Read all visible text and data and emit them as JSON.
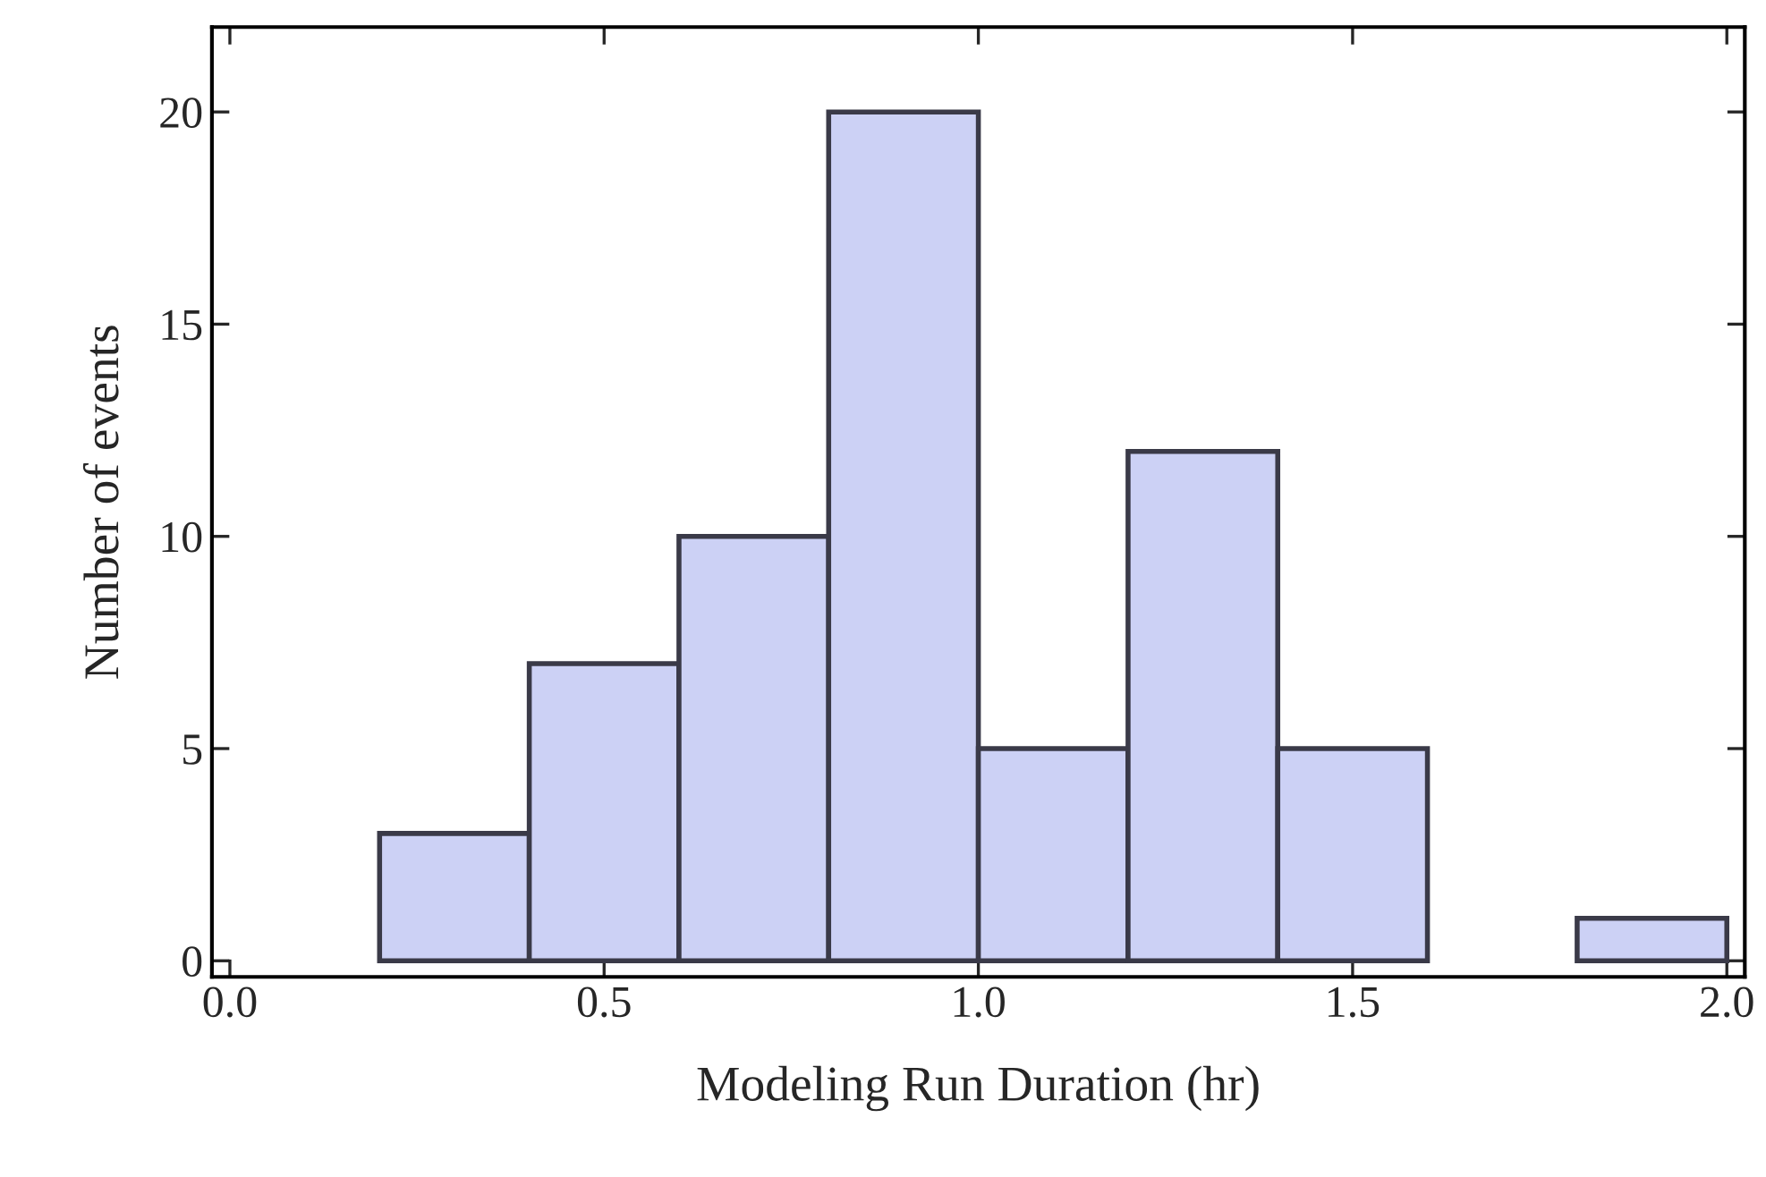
{
  "chart_data": {
    "type": "histogram",
    "xlabel": "Modeling Run Duration (hr)",
    "ylabel": "Number of events",
    "bins": [
      0.2,
      0.4,
      0.6,
      0.8,
      1.0,
      1.2,
      1.4,
      1.6,
      1.8,
      2.0
    ],
    "values": [
      3,
      7,
      10,
      20,
      5,
      12,
      5,
      0,
      1
    ],
    "color": "#ccd1f5",
    "xlim": [
      -0.024,
      2.024
    ],
    "ylim": [
      -0.38,
      22
    ],
    "xticks": [
      {
        "value": 0,
        "label": "0.0"
      },
      0.5,
      {
        "value": 1,
        "label": "1.0"
      },
      1.5,
      {
        "value": 2,
        "label": "2.0"
      }
    ],
    "yticks": [
      0,
      5,
      10,
      15,
      20
    ],
    "grid": false
  }
}
